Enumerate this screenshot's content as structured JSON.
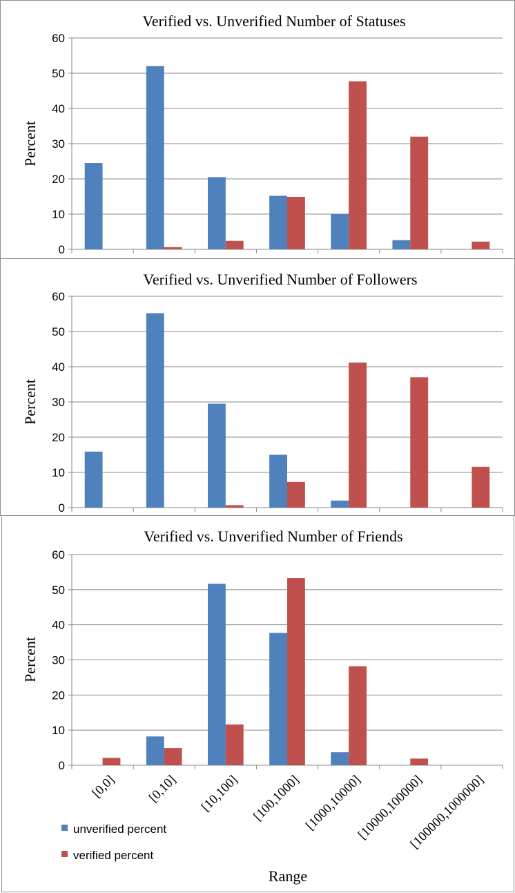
{
  "colors": {
    "unverified": "#4f81bd",
    "verified": "#c0504d",
    "grid": "#888888",
    "panel_border": "#8c8c8c",
    "axis": "#888888",
    "text": "#000000"
  },
  "legend": {
    "unverified": "unverified percent",
    "verified": "verified percent"
  },
  "xlabel": "Range",
  "chart_data": [
    {
      "type": "bar",
      "title": "Verified vs. Unverified  Number of Statuses",
      "ylabel": "Percent",
      "ylim": [
        0,
        60
      ],
      "yticks": [
        "0",
        "10",
        "20",
        "30",
        "40",
        "50",
        "60"
      ],
      "grid": true,
      "categories": [
        "[0,0]",
        "[0,10]",
        "[10,100]",
        "[100,1000]",
        "[1000,10000]",
        "[10000,100000]",
        "[100000,1000000]"
      ],
      "series": [
        {
          "name": "unverified percent",
          "values": [
            24.5,
            52,
            20.5,
            15.2,
            10,
            2.6,
            0
          ]
        },
        {
          "name": "verified percent",
          "values": [
            0,
            0.6,
            2.4,
            14.9,
            47.7,
            32,
            2.2
          ]
        }
      ]
    },
    {
      "type": "bar",
      "title": "Verified vs. Unverified  Number of Followers",
      "ylabel": "Percent",
      "ylim": [
        0,
        60
      ],
      "yticks": [
        "0",
        "10",
        "20",
        "30",
        "40",
        "50",
        "60"
      ],
      "grid": true,
      "categories": [
        "[0,0]",
        "[0,10]",
        "[10,100]",
        "[100,1000]",
        "[1000,10000]",
        "[10000,100000]",
        "[100000,1000000]"
      ],
      "series": [
        {
          "name": "unverified percent",
          "values": [
            15.9,
            55.2,
            29.5,
            15,
            2,
            0,
            0
          ]
        },
        {
          "name": "verified percent",
          "values": [
            0,
            0,
            0.7,
            7.3,
            41.2,
            37,
            11.6
          ]
        }
      ]
    },
    {
      "type": "bar",
      "title": "Verified vs. Unverified  Number of Friends",
      "ylabel": "Percent",
      "xlabel": "Range",
      "ylim": [
        0,
        60
      ],
      "yticks": [
        "0",
        "10",
        "20",
        "30",
        "40",
        "50",
        "60"
      ],
      "grid": true,
      "legend_position": "bottom-left",
      "categories": [
        "[0,0]",
        "[0,10]",
        "[10,100]",
        "[100,1000]",
        "[1000,10000]",
        "[10000,100000]",
        "[100000,1000000]"
      ],
      "series": [
        {
          "name": "unverified percent",
          "values": [
            0,
            8.2,
            51.7,
            37.7,
            3.7,
            0,
            0
          ]
        },
        {
          "name": "verified percent",
          "values": [
            2.1,
            4.9,
            11.6,
            53.3,
            28.2,
            1.9,
            0
          ]
        }
      ]
    }
  ]
}
